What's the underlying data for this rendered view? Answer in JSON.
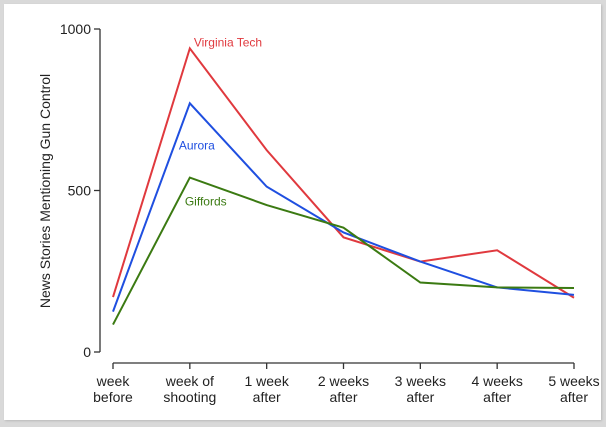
{
  "chart_data": {
    "type": "line",
    "title": "",
    "xlabel": "",
    "ylabel": "News Stories Mentioning Gun Control",
    "ylim": [
      0,
      1000
    ],
    "yticks": [
      0,
      500,
      1000
    ],
    "ytick_labels": [
      "0",
      "500",
      "1000"
    ],
    "grid": false,
    "legend": "inline labels near peak",
    "categories": [
      [
        "week",
        "before"
      ],
      [
        "week of",
        "shooting"
      ],
      [
        "1 week",
        "after"
      ],
      [
        "2 weeks",
        "after"
      ],
      [
        "3 weeks",
        "after"
      ],
      [
        "4 weeks",
        "after"
      ],
      [
        "5 weeks",
        "after"
      ]
    ],
    "series": [
      {
        "name": "Virginia Tech",
        "color": "#e0393e",
        "values": [
          170,
          940,
          625,
          355,
          280,
          315,
          168
        ]
      },
      {
        "name": "Aurora",
        "color": "#1f4fe0",
        "values": [
          125,
          770,
          512,
          370,
          280,
          200,
          177
        ]
      },
      {
        "name": "Giffords",
        "color": "#3b7a12",
        "values": [
          85,
          540,
          455,
          385,
          215,
          200,
          198
        ]
      }
    ]
  }
}
